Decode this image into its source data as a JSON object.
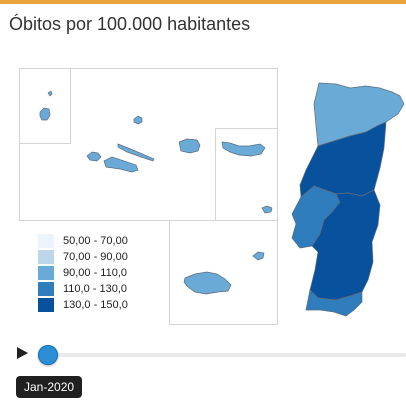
{
  "title": "Óbitos por 100.000 habitantes",
  "colors": {
    "accent_bar": "#e8a33c",
    "class_1": "#eef4fc",
    "class_2": "#bcd6ec",
    "class_3": "#6aaad6",
    "class_4": "#2f7dbd",
    "class_5": "#08519c"
  },
  "legend": {
    "items": [
      {
        "label": "50,00 - 70,00",
        "color": "#eef4fc"
      },
      {
        "label": "70,00 - 90,00",
        "color": "#bcd6ec"
      },
      {
        "label": "90,00 - 110,0",
        "color": "#6aaad6"
      },
      {
        "label": "110,0 - 130,0",
        "color": "#2f7dbd"
      },
      {
        "label": "130,0 - 150,0",
        "color": "#08519c"
      }
    ]
  },
  "regions": [
    {
      "id": "norte",
      "class": 3
    },
    {
      "id": "centro",
      "class": 5
    },
    {
      "id": "area-metropolitana-lisboa",
      "class": 4
    },
    {
      "id": "alentejo",
      "class": 5
    },
    {
      "id": "algarve",
      "class": 4
    },
    {
      "id": "acores",
      "class": 3
    },
    {
      "id": "madeira",
      "class": 3
    }
  ],
  "timeline": {
    "current": "Jan-2020",
    "position": 0
  }
}
